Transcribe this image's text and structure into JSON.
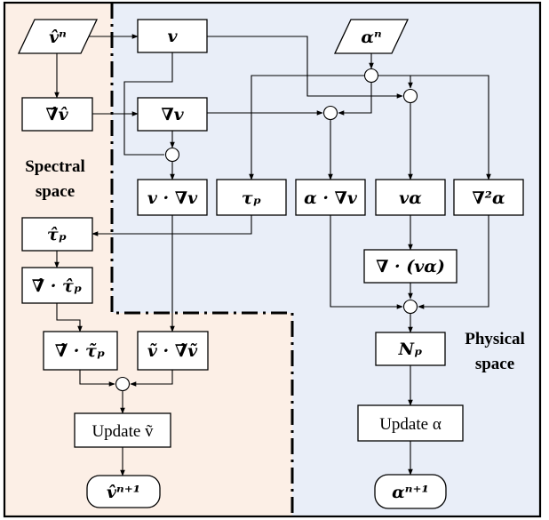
{
  "colors": {
    "spectral_region": "#fcefe6",
    "physical_region": "#e9eef8",
    "stroke": "#000000"
  },
  "regions": {
    "spectral": {
      "line1": "Spectral",
      "line2": "space"
    },
    "physical": {
      "line1": "Physical",
      "line2": "space"
    }
  },
  "nodes": {
    "v_hat_n_input": "v̂ⁿ",
    "grad_hat_v_hat": "∇̂v̂",
    "v": "v",
    "grad_v": "∇v",
    "v_dot_grad_v": "v · ∇v",
    "tau_p": "τₚ",
    "alpha_n_input": "αⁿ",
    "alpha_dot_grad_v": "α · ∇v",
    "v_alpha": "vα",
    "laplacian_alpha": "∇²α",
    "div_v_alpha": "∇ · (vα)",
    "N_p": "Nₚ",
    "update_alpha": "Update α",
    "alpha_next": "αⁿ⁺¹",
    "tau_hat_p": "τ̂ₚ",
    "grad_hat_dot_tau_hat_p": "∇̂ · τ̂ₚ",
    "grad_tilde_dot_tau_tilde_p": "∇̃ · τ̃ₚ",
    "v_tilde_dot_grad_tilde_v_tilde": "ṽ · ∇̃ṽ",
    "update_v_tilde": "Update ṽ",
    "v_hat_next": "v̂ⁿ⁺¹"
  }
}
